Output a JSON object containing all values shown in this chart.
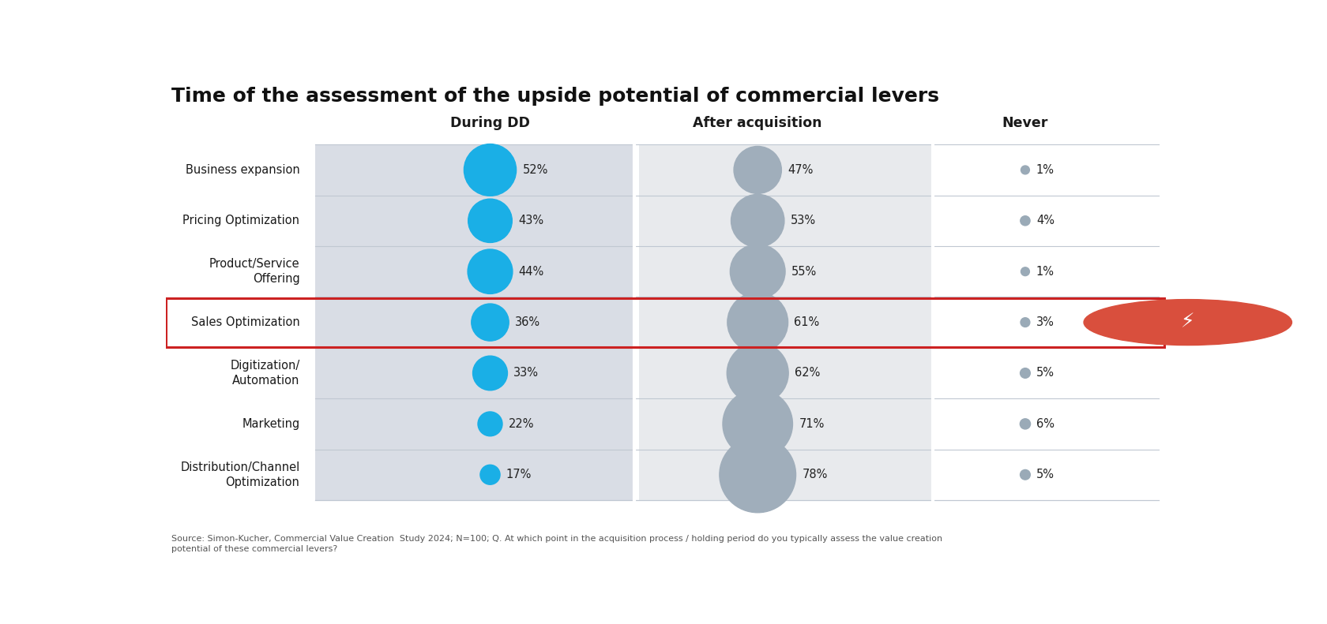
{
  "title": "Time of the assessment of the upside potential of commercial levers",
  "categories": [
    "Business expansion",
    "Pricing Optimization",
    "Product/Service\nOffering",
    "Sales Optimization",
    "Digitization/\nAutomation",
    "Marketing",
    "Distribution/Channel\nOptimization"
  ],
  "during_dd": [
    52,
    43,
    44,
    36,
    33,
    22,
    17
  ],
  "after_acquisition": [
    47,
    53,
    55,
    61,
    62,
    71,
    78
  ],
  "never": [
    1,
    4,
    1,
    3,
    5,
    6,
    5
  ],
  "highlight_row": 3,
  "col_headers": [
    "During DD",
    "After acquisition",
    "Never"
  ],
  "footnote": "Source: Simon-Kucher, Commercial Value Creation  Study 2024; N=100; Q. At which point in the acquisition process / holding period do you typically assess the value creation\npotential of these commercial levers?",
  "dd_color": "#1AAFE6",
  "after_color": "#A0AEBB",
  "never_color": "#9AAAB7",
  "bg_color_dd": "#D9DDE5",
  "bg_color_after": "#E8EAED",
  "highlight_color": "#CC2222",
  "lightning_bg": "#D94F3D"
}
